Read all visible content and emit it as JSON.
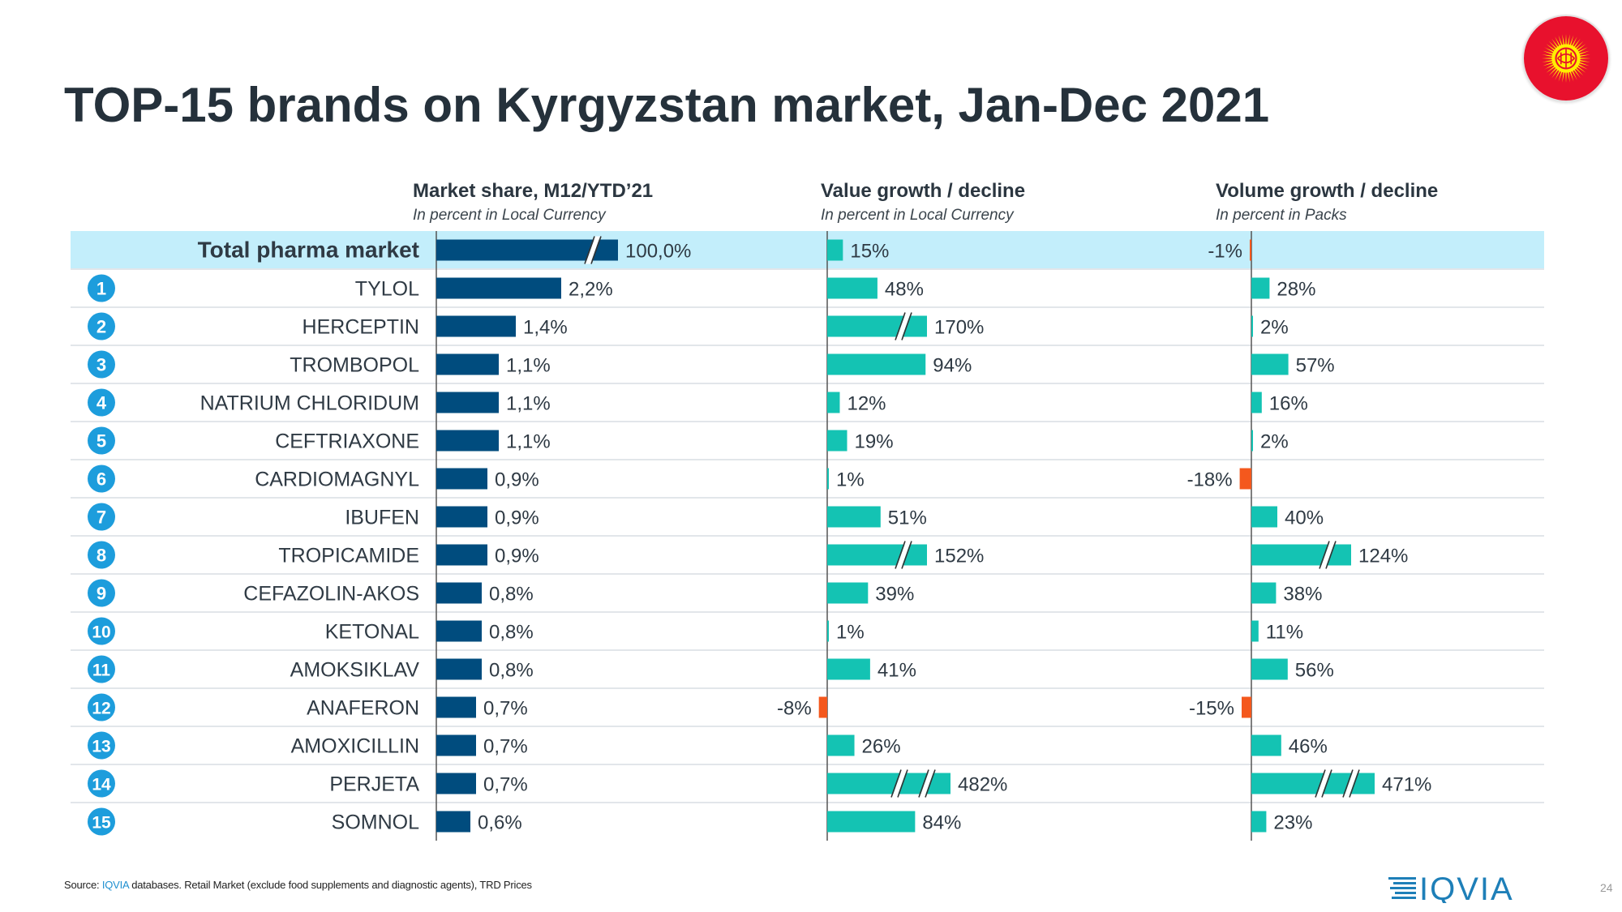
{
  "title": "TOP-15 brands on Kyrgyzstan market, Jan-Dec 2021",
  "column_headers": [
    {
      "title": "Market share, M12/YTD’21",
      "subtitle": "In percent in Local Currency"
    },
    {
      "title": "Value growth / decline",
      "subtitle": "In percent in Local Currency"
    },
    {
      "title": "Volume growth / decline",
      "subtitle": "In percent in Packs"
    }
  ],
  "footer": {
    "prefix": "Source: ",
    "brand": "IQVIA",
    "rest": " databases. Retail Market (exclude food supplements and diagnostic agents), TRD Prices"
  },
  "logo_text": "IQVIA",
  "page_number": "24",
  "colors": {
    "share_bar": "#004c7e",
    "growth_bar": "#14c3b3",
    "decline_bar": "#f4581d",
    "total_row_bg": "#c3eefb",
    "rank_badge": "#1d9ddc"
  },
  "chart_data": {
    "type": "table",
    "columns": [
      "rank",
      "brand",
      "market_share",
      "value_growth",
      "volume_growth"
    ],
    "rows": [
      {
        "rank": "",
        "brand": "Total pharma market",
        "share": 100.0,
        "share_label": "100,0%",
        "share_break": 1,
        "value": 15,
        "value_label": "15%",
        "value_breaks": 0,
        "volume": -1,
        "volume_label": "-1%",
        "volume_breaks": 0,
        "total": true
      },
      {
        "rank": "1",
        "brand": "TYLOL",
        "share": 2.2,
        "share_label": "2,2%",
        "value": 48,
        "value_label": "48%",
        "value_breaks": 0,
        "volume": 28,
        "volume_label": "28%",
        "volume_breaks": 0
      },
      {
        "rank": "2",
        "brand": "HERCEPTIN",
        "share": 1.4,
        "share_label": "1,4%",
        "value": 170,
        "value_label": "170%",
        "value_breaks": 1,
        "volume": 2,
        "volume_label": "2%",
        "volume_breaks": 0
      },
      {
        "rank": "3",
        "brand": "TROMBOPOL",
        "share": 1.1,
        "share_label": "1,1%",
        "value": 94,
        "value_label": "94%",
        "value_breaks": 0,
        "volume": 57,
        "volume_label": "57%",
        "volume_breaks": 0
      },
      {
        "rank": "4",
        "brand": "NATRIUM CHLORIDUM",
        "share": 1.1,
        "share_label": "1,1%",
        "value": 12,
        "value_label": "12%",
        "value_breaks": 0,
        "volume": 16,
        "volume_label": "16%",
        "volume_breaks": 0
      },
      {
        "rank": "5",
        "brand": "CEFTRIAXONE",
        "share": 1.1,
        "share_label": "1,1%",
        "value": 19,
        "value_label": "19%",
        "value_breaks": 0,
        "volume": 2,
        "volume_label": "2%",
        "volume_breaks": 0
      },
      {
        "rank": "6",
        "brand": "CARDIOMAGNYL",
        "share": 0.9,
        "share_label": "0,9%",
        "value": 1,
        "value_label": "1%",
        "value_breaks": 0,
        "volume": -18,
        "volume_label": "-18%",
        "volume_breaks": 0
      },
      {
        "rank": "7",
        "brand": "IBUFEN",
        "share": 0.9,
        "share_label": "0,9%",
        "value": 51,
        "value_label": "51%",
        "value_breaks": 0,
        "volume": 40,
        "volume_label": "40%",
        "volume_breaks": 0
      },
      {
        "rank": "8",
        "brand": "TROPICAMIDE",
        "share": 0.9,
        "share_label": "0,9%",
        "value": 152,
        "value_label": "152%",
        "value_breaks": 1,
        "volume": 124,
        "volume_label": "124%",
        "volume_breaks": 1
      },
      {
        "rank": "9",
        "brand": "CEFAZOLIN-AKOS",
        "share": 0.8,
        "share_label": "0,8%",
        "value": 39,
        "value_label": "39%",
        "value_breaks": 0,
        "volume": 38,
        "volume_label": "38%",
        "volume_breaks": 0
      },
      {
        "rank": "10",
        "brand": "KETONAL",
        "share": 0.8,
        "share_label": "0,8%",
        "value": 1,
        "value_label": "1%",
        "value_breaks": 0,
        "volume": 11,
        "volume_label": "11%",
        "volume_breaks": 0
      },
      {
        "rank": "11",
        "brand": "AMOKSIKLAV",
        "share": 0.8,
        "share_label": "0,8%",
        "value": 41,
        "value_label": "41%",
        "value_breaks": 0,
        "volume": 56,
        "volume_label": "56%",
        "volume_breaks": 0
      },
      {
        "rank": "12",
        "brand": "ANAFERON",
        "share": 0.7,
        "share_label": "0,7%",
        "value": -8,
        "value_label": "-8%",
        "value_breaks": 0,
        "volume": -15,
        "volume_label": "-15%",
        "volume_breaks": 0
      },
      {
        "rank": "13",
        "brand": "AMOXICILLIN",
        "share": 0.7,
        "share_label": "0,7%",
        "value": 26,
        "value_label": "26%",
        "value_breaks": 0,
        "volume": 46,
        "volume_label": "46%",
        "volume_breaks": 0
      },
      {
        "rank": "14",
        "brand": "PERJETA",
        "share": 0.7,
        "share_label": "0,7%",
        "value": 482,
        "value_label": "482%",
        "value_breaks": 2,
        "volume": 471,
        "volume_label": "471%",
        "volume_breaks": 2
      },
      {
        "rank": "15",
        "brand": "SOMNOL",
        "share": 0.6,
        "share_label": "0,6%",
        "value": 84,
        "value_label": "84%",
        "value_breaks": 0,
        "volume": 23,
        "volume_label": "23%",
        "volume_breaks": 0
      }
    ]
  }
}
